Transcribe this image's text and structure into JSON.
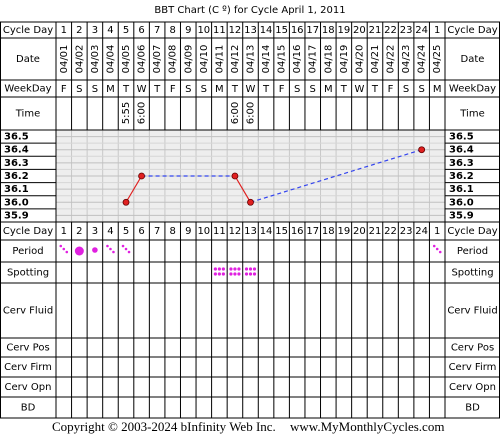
{
  "chart_data": {
    "type": "line",
    "title": "BBT Chart (C º) for Cycle April 1, 2011",
    "categories": [
      "1",
      "2",
      "3",
      "4",
      "5",
      "6",
      "7",
      "8",
      "9",
      "10",
      "11",
      "12",
      "13",
      "14",
      "15",
      "16",
      "17",
      "18",
      "19",
      "20",
      "21",
      "22",
      "23",
      "24",
      "1"
    ],
    "dates": [
      "04/01",
      "04/02",
      "04/03",
      "04/04",
      "04/05",
      "04/06",
      "04/07",
      "04/08",
      "04/09",
      "04/10",
      "04/11",
      "04/12",
      "04/13",
      "04/14",
      "04/15",
      "04/16",
      "04/17",
      "04/18",
      "04/19",
      "04/20",
      "04/21",
      "04/22",
      "04/23",
      "04/24",
      "04/25"
    ],
    "weekdays": [
      "F",
      "S",
      "S",
      "M",
      "T",
      "W",
      "T",
      "F",
      "S",
      "S",
      "M",
      "T",
      "W",
      "T",
      "F",
      "S",
      "S",
      "M",
      "T",
      "W",
      "T",
      "F",
      "S",
      "S",
      "M"
    ],
    "times": [
      null,
      null,
      null,
      null,
      "5:55",
      "6:00",
      null,
      null,
      null,
      null,
      null,
      "6:00",
      "6:00",
      null,
      null,
      null,
      null,
      null,
      null,
      null,
      null,
      null,
      null,
      null,
      null
    ],
    "values": [
      null,
      null,
      null,
      null,
      36.0,
      36.2,
      null,
      null,
      null,
      null,
      null,
      36.2,
      36.0,
      null,
      null,
      null,
      null,
      null,
      null,
      null,
      null,
      null,
      null,
      36.4,
      null
    ],
    "color": "#e02020",
    "ylim": [
      35.85,
      36.55
    ],
    "yticks": [
      {
        "value": 36.5,
        "label": "36.5"
      },
      {
        "value": 36.4,
        "label": "36.4"
      },
      {
        "value": 36.3,
        "label": "36.3"
      },
      {
        "value": 36.2,
        "label": "36.2"
      },
      {
        "value": 36.1,
        "label": "36.1"
      },
      {
        "value": 36.0,
        "label": "36.0"
      },
      {
        "value": 35.9,
        "label": "35.9"
      }
    ],
    "top_rows": [
      "Cycle Day",
      "Date",
      "WeekDay",
      "Time"
    ],
    "bottom_rows": [
      "Cycle Day",
      "Period",
      "Spotting",
      "Cerv Fluid",
      "Cerv Pos",
      "Cerv Firm",
      "Cerv Opn",
      "BD"
    ],
    "footer": {
      "copyright": "Copyright © 2003-2024 bInfinity Web Inc.",
      "url": "www.MyMonthlyCycles.com"
    }
  }
}
